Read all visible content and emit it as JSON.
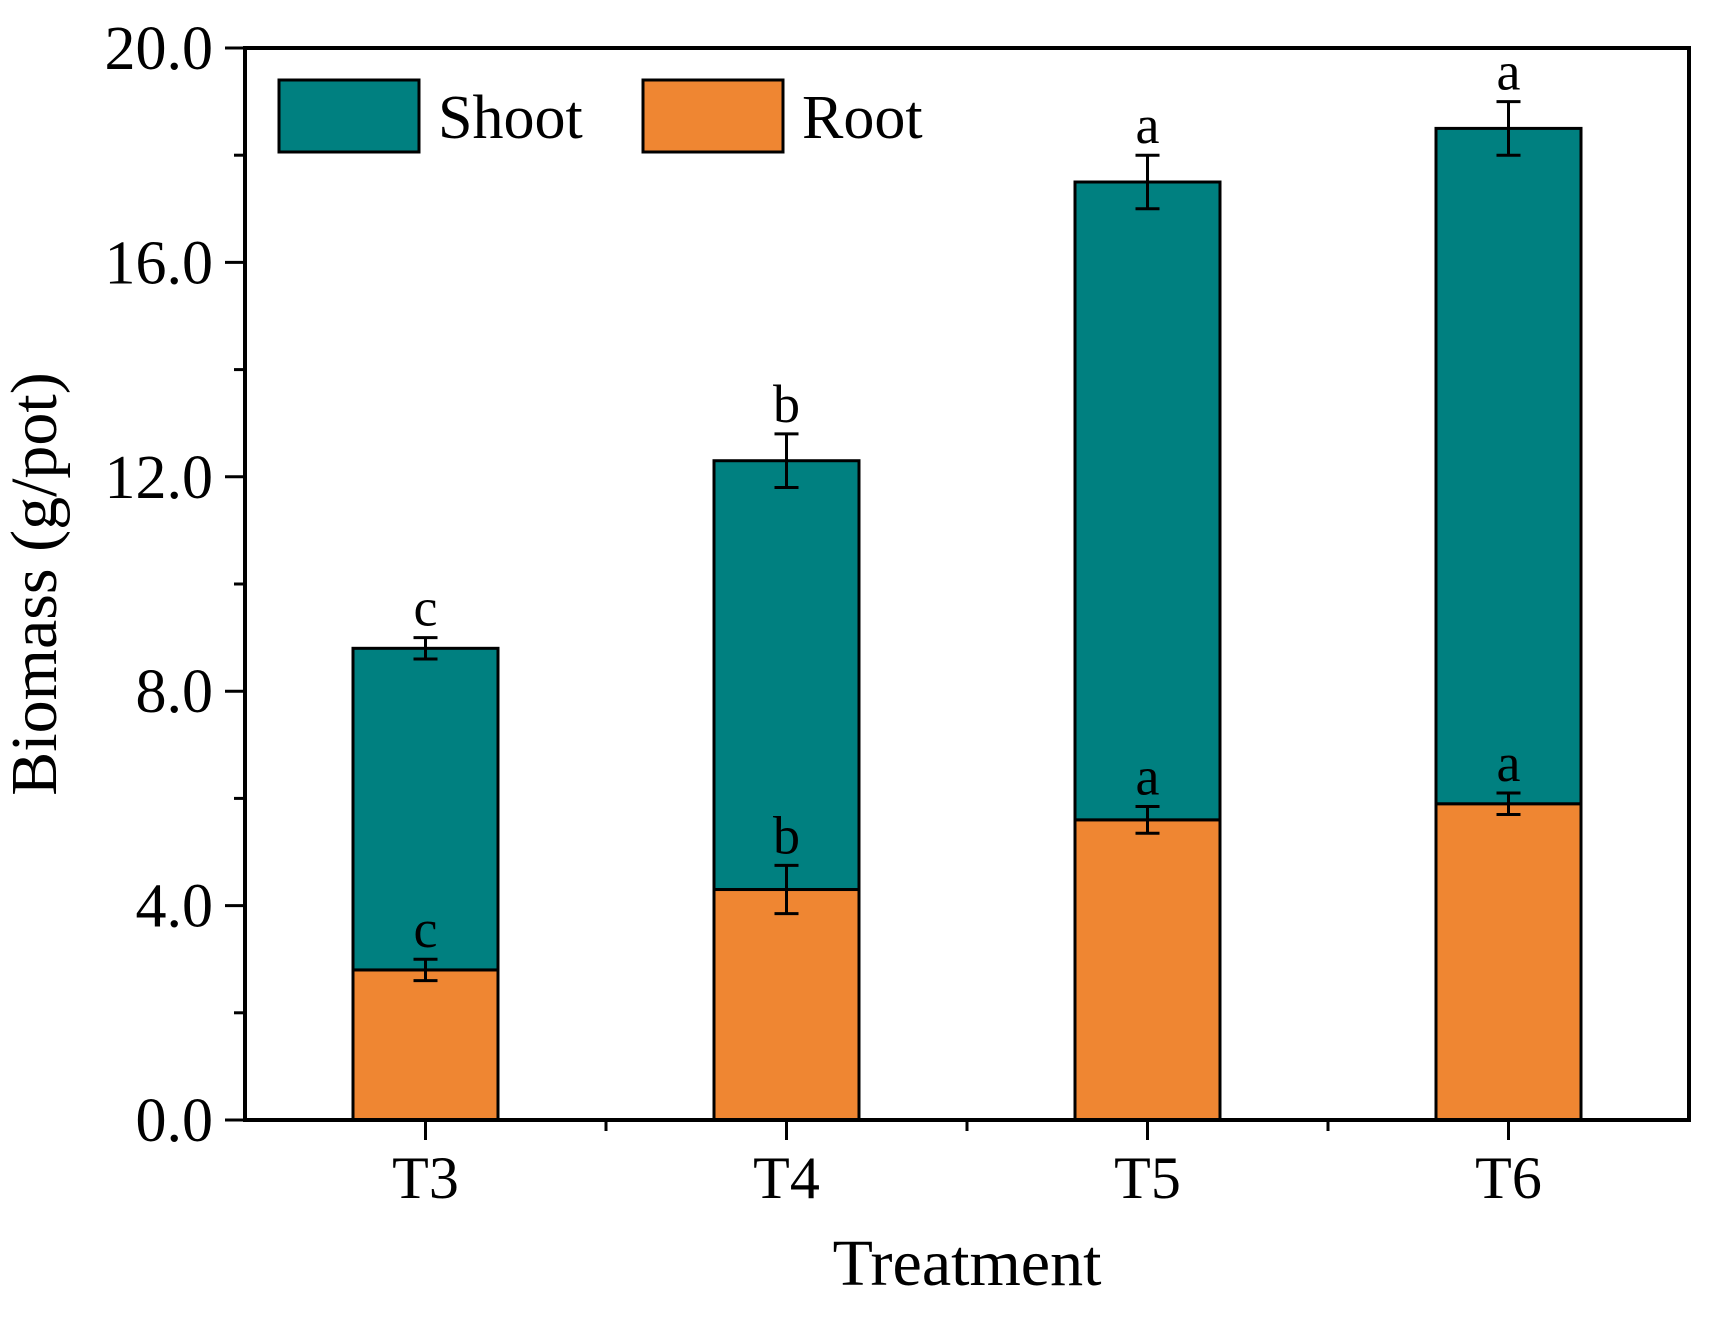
{
  "figure": {
    "background": "#ffffff",
    "frame_color": "#000000"
  },
  "chart_data": {
    "type": "bar",
    "stacked": true,
    "title": "",
    "xlabel": "Treatment",
    "ylabel": "Biomass (g/pot)",
    "categories": [
      "T3",
      "T4",
      "T5",
      "T6"
    ],
    "series": [
      {
        "name": "Shoot",
        "color": "#008080",
        "values": [
          6.0,
          8.0,
          11.9,
          12.6
        ]
      },
      {
        "name": "Root",
        "color": "#EF8632",
        "values": [
          2.8,
          4.3,
          5.6,
          5.9
        ]
      }
    ],
    "total_values": [
      8.8,
      12.3,
      17.5,
      18.5
    ],
    "root_error_bars": [
      0.2,
      0.45,
      0.25,
      0.2
    ],
    "total_error_bars": [
      0.2,
      0.5,
      0.5,
      0.5
    ],
    "sig_letters_root": [
      "c",
      "b",
      "a",
      "a"
    ],
    "sig_letters_total": [
      "c",
      "b",
      "a",
      "a"
    ],
    "y_axis": {
      "min": 0,
      "max": 20,
      "major_step": 4,
      "minor_step": 2,
      "tick_labels": [
        "0.0",
        "4.0",
        "8.0",
        "12.0",
        "16.0",
        "20.0"
      ]
    },
    "x_axis": {
      "tick_labels": [
        "T3",
        "T4",
        "T5",
        "T6"
      ]
    },
    "legend": {
      "position": "top-left",
      "entries": [
        {
          "label": "Shoot",
          "color": "#008080"
        },
        {
          "label": "Root",
          "color": "#EF8632"
        }
      ]
    },
    "grid": "off"
  }
}
